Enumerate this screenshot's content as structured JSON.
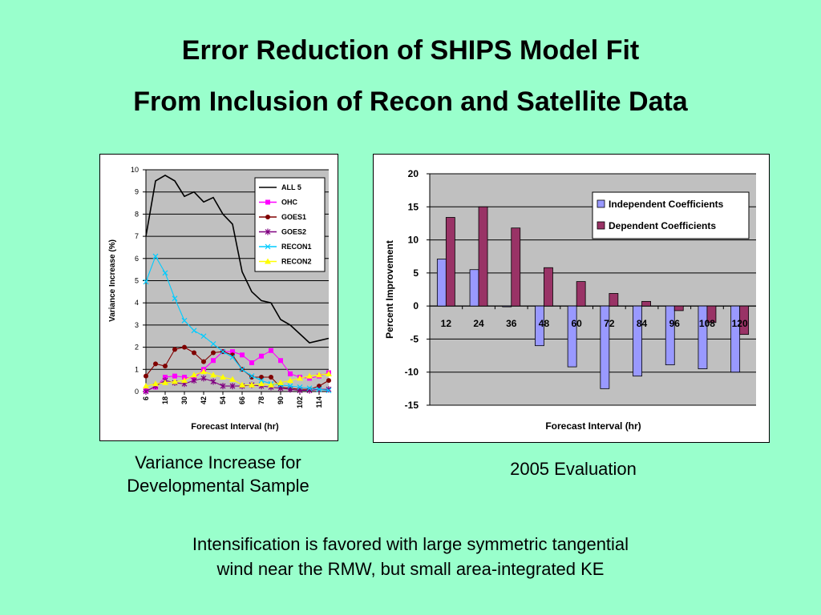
{
  "slide": {
    "title_line1": "Error Reduction of SHIPS Model Fit",
    "title_line2": "From Inclusion of Recon and Satellite Data",
    "caption_left_line1": "Variance Increase for",
    "caption_left_line2": "Developmental Sample",
    "caption_right": "2005 Evaluation",
    "note_line1": "Intensification is favored with large symmetric tangential",
    "note_line2": "wind near the RMW, but small area-integrated KE"
  },
  "colors": {
    "background": "#99ffcc",
    "plot_area": "#c0c0c0",
    "independent": "#9999ff",
    "dependent": "#993366"
  },
  "chart_data": [
    {
      "type": "line",
      "title": "",
      "xlabel": "Forecast Interval (hr)",
      "ylabel": "Variance Increase (%)",
      "ylim": [
        0,
        10
      ],
      "yticks": [
        0,
        1,
        2,
        3,
        4,
        5,
        6,
        7,
        8,
        9,
        10
      ],
      "x": [
        6,
        12,
        18,
        24,
        30,
        36,
        42,
        48,
        54,
        60,
        66,
        72,
        78,
        84,
        90,
        96,
        102,
        108,
        114,
        120
      ],
      "xtick_labels": [
        "6",
        "18",
        "30",
        "42",
        "54",
        "66",
        "78",
        "90",
        "102",
        "114"
      ],
      "xtick_values": [
        6,
        18,
        30,
        42,
        54,
        66,
        78,
        90,
        102,
        114
      ],
      "grid": "horizontal",
      "legend_position": "top-right",
      "series": [
        {
          "name": "ALL 5",
          "color": "#000000",
          "marker": "none",
          "values": [
            7.0,
            9.5,
            9.75,
            9.5,
            8.8,
            9.0,
            8.55,
            8.75,
            8.0,
            7.55,
            5.4,
            4.5,
            4.1,
            4.0,
            3.25,
            3.0,
            2.6,
            2.2,
            2.3,
            2.4
          ]
        },
        {
          "name": "OHC",
          "color": "#ff00ff",
          "marker": "square",
          "values": [
            0.05,
            0.2,
            0.65,
            0.7,
            0.65,
            0.6,
            1.0,
            1.4,
            1.8,
            1.8,
            1.65,
            1.3,
            1.6,
            1.85,
            1.4,
            0.8,
            0.65,
            0.6,
            0.7,
            0.85
          ]
        },
        {
          "name": "GOES1",
          "color": "#800000",
          "marker": "circle",
          "values": [
            0.7,
            1.25,
            1.15,
            1.9,
            2.0,
            1.75,
            1.35,
            1.75,
            1.8,
            1.65,
            1.0,
            0.65,
            0.65,
            0.65,
            0.2,
            0.15,
            0.1,
            0.1,
            0.25,
            0.5
          ]
        },
        {
          "name": "GOES2",
          "color": "#800080",
          "marker": "star",
          "values": [
            0.0,
            0.25,
            0.5,
            0.4,
            0.35,
            0.5,
            0.6,
            0.45,
            0.25,
            0.25,
            0.25,
            0.3,
            0.25,
            0.2,
            0.15,
            0.1,
            0.05,
            0.05,
            0.1,
            0.1
          ]
        },
        {
          "name": "RECON1",
          "color": "#00ccff",
          "marker": "x",
          "values": [
            4.95,
            6.1,
            5.35,
            4.2,
            3.2,
            2.75,
            2.5,
            2.15,
            1.8,
            1.55,
            1.0,
            0.7,
            0.5,
            0.35,
            0.3,
            0.25,
            0.2,
            0.15,
            0.1,
            0.05
          ]
        },
        {
          "name": "RECON2",
          "color": "#ffff00",
          "marker": "triangle",
          "values": [
            0.25,
            0.35,
            0.4,
            0.45,
            0.5,
            0.75,
            0.9,
            0.75,
            0.65,
            0.55,
            0.3,
            0.3,
            0.35,
            0.3,
            0.4,
            0.5,
            0.6,
            0.7,
            0.75,
            0.8
          ]
        }
      ]
    },
    {
      "type": "bar",
      "title": "",
      "xlabel": "Forecast Interval (hr)",
      "ylabel": "Percent Improvement",
      "ylim": [
        -15,
        20
      ],
      "yticks": [
        -15,
        -10,
        -5,
        0,
        5,
        10,
        15,
        20
      ],
      "categories": [
        "12",
        "24",
        "36",
        "48",
        "60",
        "72",
        "84",
        "96",
        "108",
        "120"
      ],
      "grid": "horizontal",
      "legend_position": "top-right",
      "series": [
        {
          "name": "Independent Coefficients",
          "color": "#9999ff",
          "values": [
            7.1,
            5.5,
            -0.1,
            -6.0,
            -9.2,
            -12.5,
            -10.6,
            -8.9,
            -9.5,
            -10.0
          ]
        },
        {
          "name": "Dependent Coefficients",
          "color": "#993366",
          "values": [
            13.4,
            15.0,
            11.8,
            5.8,
            3.7,
            1.9,
            0.7,
            -0.7,
            -2.5,
            -4.3
          ]
        }
      ]
    }
  ]
}
